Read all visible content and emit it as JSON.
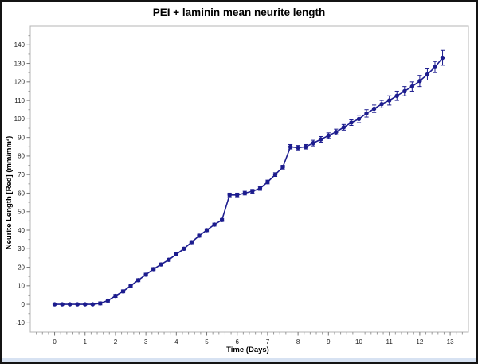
{
  "title": "PEI + laminin mean neurite length",
  "colors": {
    "series": "#1c1c8e",
    "plot_frame": "#b4b4b4",
    "major_tick": "#777777",
    "minor_tick": "#999999",
    "tick_label": "#1c1c1c",
    "window_edge": "#d7e2f2",
    "border": "#141414"
  },
  "chart_data": {
    "type": "line",
    "title": "PEI + laminin mean neurite length",
    "xlabel": "Time (Days)",
    "ylabel": "Neurite Length [Red] (mm/mm²)",
    "xlim": [
      -0.8,
      13.6
    ],
    "ylim": [
      -15,
      150
    ],
    "x_ticks": [
      0,
      1,
      2,
      3,
      4,
      5,
      6,
      7,
      8,
      9,
      10,
      11,
      12,
      13
    ],
    "y_ticks": [
      -10,
      0,
      10,
      20,
      30,
      40,
      50,
      60,
      70,
      80,
      90,
      100,
      110,
      120,
      130,
      140
    ],
    "x_minor_step": 0.2,
    "y_minor_step": 5,
    "grid": false,
    "legend": "none",
    "series": [
      {
        "name": "PEI + laminin",
        "color": "#1c1c8e",
        "marker": "circle",
        "x": [
          0,
          0.25,
          0.5,
          0.75,
          1,
          1.25,
          1.5,
          1.75,
          2,
          2.25,
          2.5,
          2.75,
          3,
          3.25,
          3.5,
          3.75,
          4,
          4.25,
          4.5,
          4.75,
          5,
          5.25,
          5.5,
          5.75,
          6,
          6.25,
          6.5,
          6.75,
          7,
          7.25,
          7.5,
          7.75,
          8,
          8.25,
          8.5,
          8.75,
          9,
          9.25,
          9.5,
          9.75,
          10,
          10.25,
          10.5,
          10.75,
          11,
          11.25,
          11.5,
          11.75,
          12,
          12.25,
          12.5,
          12.75
        ],
        "y": [
          0,
          0,
          0,
          0,
          0,
          0,
          0.5,
          2,
          4.5,
          7,
          10,
          13,
          16,
          19,
          21.5,
          24,
          27,
          30,
          33.5,
          37,
          40,
          43,
          45.5,
          59,
          59,
          60,
          61,
          62.5,
          66,
          70,
          74,
          85,
          84.5,
          85,
          87,
          89,
          91,
          93,
          95.5,
          98,
          100,
          103,
          105.5,
          108,
          110,
          112.5,
          115,
          117.5,
          120.5,
          124,
          128,
          133
        ],
        "yerr": [
          0.3,
          0.3,
          0.3,
          0.3,
          0.3,
          0.3,
          0.8,
          0.8,
          0.8,
          0.8,
          0.8,
          0.8,
          0.8,
          0.8,
          0.8,
          0.8,
          0.8,
          0.8,
          0.8,
          0.8,
          0.8,
          0.8,
          0.8,
          1,
          1,
          1,
          1,
          1,
          1,
          1,
          1,
          1.2,
          1.2,
          1.2,
          1.5,
          1.5,
          1.5,
          1.5,
          1.5,
          1.5,
          2,
          2,
          2,
          2,
          2.5,
          2.5,
          2.5,
          2.5,
          3,
          3,
          3,
          4
        ]
      }
    ]
  }
}
